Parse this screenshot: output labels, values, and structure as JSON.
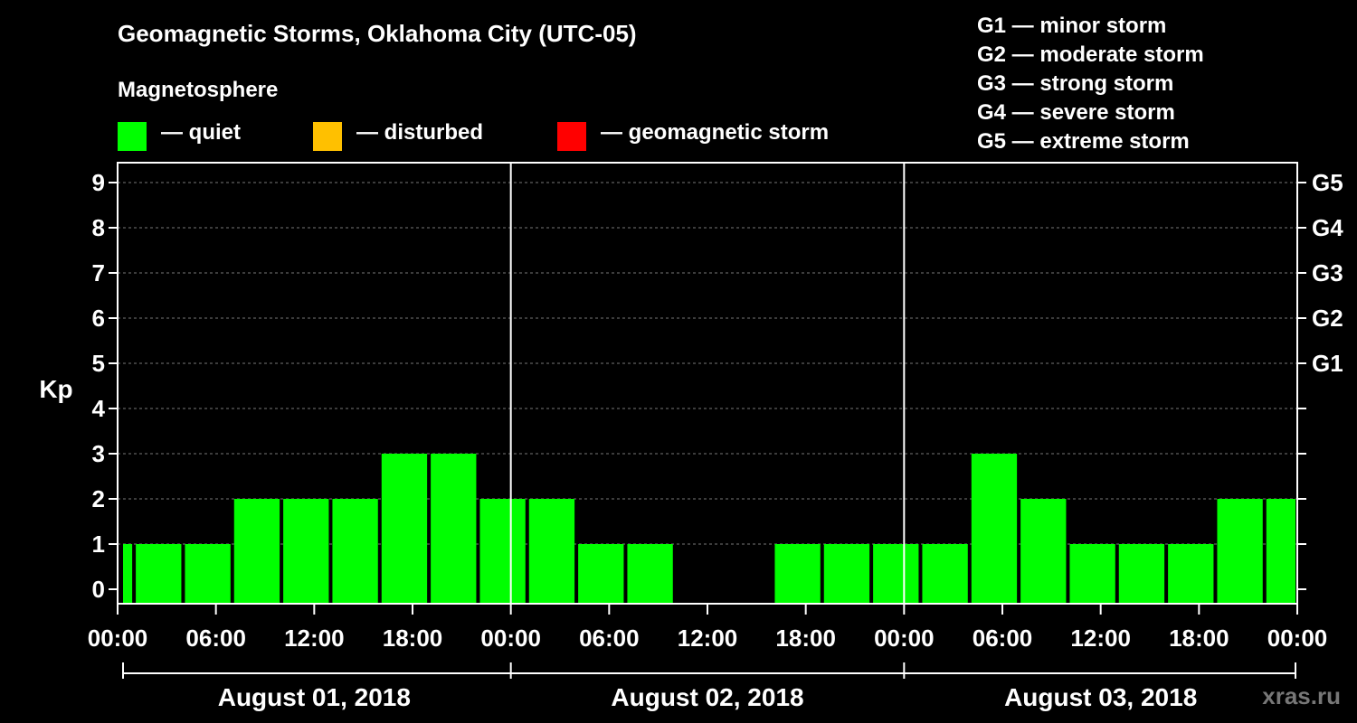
{
  "header": {
    "title": "Geomagnetic Storms, Oklahoma City (UTC-05)",
    "legend_heading": "Magnetosphere",
    "legend": [
      {
        "label": "— quiet",
        "color": "#00ff00"
      },
      {
        "label": "— disturbed",
        "color": "#ffc000"
      },
      {
        "label": "— geomagnetic storm",
        "color": "#ff0000"
      }
    ],
    "g_scale": [
      "G1 — minor storm",
      "G2 — moderate storm",
      "G3 — strong storm",
      "G4 — severe storm",
      "G5 — extreme storm"
    ]
  },
  "watermark": "xras.ru",
  "chart_data": {
    "type": "bar",
    "title": "Geomagnetic Storms, Oklahoma City (UTC-05)",
    "ylabel": "Kp",
    "ylim": [
      0,
      9
    ],
    "y_ticks": [
      "0",
      "1",
      "2",
      "3",
      "4",
      "5",
      "6",
      "7",
      "8",
      "9"
    ],
    "right_axis_labels": [
      {
        "kp": 5,
        "label": "G1"
      },
      {
        "kp": 6,
        "label": "G2"
      },
      {
        "kp": 7,
        "label": "G3"
      },
      {
        "kp": 8,
        "label": "G4"
      },
      {
        "kp": 9,
        "label": "G5"
      }
    ],
    "x_range_hours": [
      0,
      72
    ],
    "x_tick_labels": [
      "00:00",
      "06:00",
      "12:00",
      "18:00",
      "00:00",
      "06:00",
      "12:00",
      "18:00",
      "00:00",
      "06:00",
      "12:00",
      "18:00",
      "00:00"
    ],
    "days": [
      "August 01, 2018",
      "August 02, 2018",
      "August 03, 2018"
    ],
    "bars": [
      {
        "start": 0,
        "end": 1,
        "value": 1,
        "color": "#00ff00"
      },
      {
        "start": 1,
        "end": 4,
        "value": 1,
        "color": "#00ff00"
      },
      {
        "start": 4,
        "end": 7,
        "value": 1,
        "color": "#00ff00"
      },
      {
        "start": 7,
        "end": 10,
        "value": 2,
        "color": "#00ff00"
      },
      {
        "start": 10,
        "end": 13,
        "value": 2,
        "color": "#00ff00"
      },
      {
        "start": 13,
        "end": 16,
        "value": 2,
        "color": "#00ff00"
      },
      {
        "start": 16,
        "end": 19,
        "value": 3,
        "color": "#00ff00"
      },
      {
        "start": 19,
        "end": 22,
        "value": 3,
        "color": "#00ff00"
      },
      {
        "start": 22,
        "end": 25,
        "value": 2,
        "color": "#00ff00"
      },
      {
        "start": 25,
        "end": 28,
        "value": 2,
        "color": "#00ff00"
      },
      {
        "start": 28,
        "end": 31,
        "value": 1,
        "color": "#00ff00"
      },
      {
        "start": 31,
        "end": 34,
        "value": 1,
        "color": "#00ff00"
      },
      {
        "start": 34,
        "end": 37,
        "value": 0,
        "color": "#00ff00"
      },
      {
        "start": 37,
        "end": 40,
        "value": 0,
        "color": "#00ff00"
      },
      {
        "start": 40,
        "end": 43,
        "value": 1,
        "color": "#00ff00"
      },
      {
        "start": 43,
        "end": 46,
        "value": 1,
        "color": "#00ff00"
      },
      {
        "start": 46,
        "end": 49,
        "value": 1,
        "color": "#00ff00"
      },
      {
        "start": 49,
        "end": 52,
        "value": 1,
        "color": "#00ff00"
      },
      {
        "start": 52,
        "end": 55,
        "value": 3,
        "color": "#00ff00"
      },
      {
        "start": 55,
        "end": 58,
        "value": 2,
        "color": "#00ff00"
      },
      {
        "start": 58,
        "end": 61,
        "value": 1,
        "color": "#00ff00"
      },
      {
        "start": 61,
        "end": 64,
        "value": 1,
        "color": "#00ff00"
      },
      {
        "start": 64,
        "end": 67,
        "value": 1,
        "color": "#00ff00"
      },
      {
        "start": 67,
        "end": 70,
        "value": 2,
        "color": "#00ff00"
      },
      {
        "start": 70,
        "end": 72,
        "value": 2,
        "color": "#00ff00"
      }
    ]
  }
}
